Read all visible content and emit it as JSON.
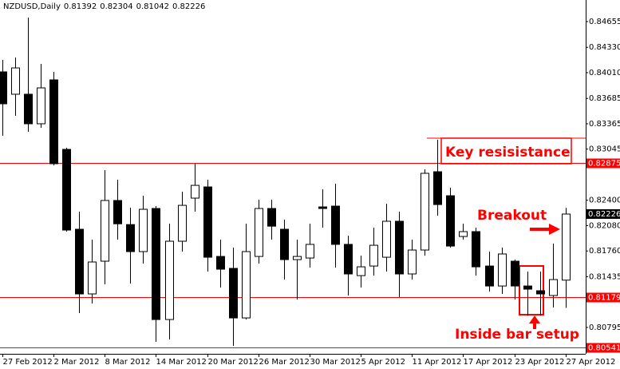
{
  "chart_data": {
    "type": "candlestick",
    "symbol": "NZDUSD,Daily",
    "categories": [
      "27 Feb 2012",
      null,
      null,
      null,
      "2 Mar 2012",
      null,
      null,
      null,
      "8 Mar 2012",
      null,
      null,
      null,
      "14 Mar 2012",
      null,
      null,
      null,
      "20 Mar 2012",
      null,
      null,
      null,
      "26 Mar 2012",
      null,
      null,
      null,
      "30 Mar 2012",
      null,
      null,
      null,
      "5 Apr 2012",
      null,
      null,
      null,
      "11 Apr 2012",
      null,
      null,
      null,
      "17 Apr 2012",
      null,
      null,
      null,
      "23 Apr 2012",
      null,
      null,
      null,
      "27 Apr 2012"
    ],
    "open": [
      0.8402,
      0.83738,
      0.83738,
      0.83365,
      0.83919,
      0.83042,
      0.82034,
      0.81218,
      0.81631,
      0.82397,
      0.82093,
      0.81752,
      0.82296,
      0.80895,
      0.81883,
      0.82427,
      0.82568,
      0.81691,
      0.8154,
      0.80915,
      0.81691,
      0.82296,
      0.82034,
      0.81651,
      0.81671,
      0.82316,
      0.82326,
      0.81843,
      0.81449,
      0.8157,
      0.81681,
      0.82135,
      0.8147,
      0.81772,
      0.8276,
      0.82457,
      0.81943,
      0.82004,
      0.8157,
      0.81318,
      0.81631,
      0.81318,
      0.81258,
      0.81198,
      0.81392
    ],
    "high": [
      0.84171,
      0.84201,
      0.84705,
      0.84121,
      0.8402,
      0.83062,
      0.82256,
      0.81903,
      0.8278,
      0.82659,
      0.82306,
      0.82457,
      0.82326,
      0.82103,
      0.82508,
      0.82861,
      0.82659,
      0.81903,
      0.81802,
      0.82103,
      0.82407,
      0.82407,
      0.82155,
      0.81903,
      0.82103,
      0.82538,
      0.82609,
      0.81953,
      0.81701,
      0.82054,
      0.82356,
      0.82256,
      0.81903,
      0.8279,
      0.83163,
      0.82558,
      0.82103,
      0.82054,
      0.81752,
      0.81802,
      0.81651,
      0.815,
      0.815,
      0.81853,
      0.82304
    ],
    "low": [
      0.83213,
      0.83465,
      0.83264,
      0.83314,
      0.8284,
      0.82004,
      0.80976,
      0.81097,
      0.81339,
      0.81903,
      0.81349,
      0.81601,
      0.80613,
      0.80643,
      0.81752,
      0.82256,
      0.815,
      0.81298,
      0.80562,
      0.80895,
      0.81601,
      0.81903,
      0.81399,
      0.81147,
      0.8155,
      0.82054,
      0.8155,
      0.81198,
      0.81298,
      0.81449,
      0.815,
      0.81177,
      0.81399,
      0.81701,
      0.82205,
      0.81802,
      0.81903,
      0.81449,
      0.81248,
      0.81218,
      0.81147,
      0.80945,
      0.80945,
      0.81046,
      0.81042
    ],
    "close": [
      0.83617,
      0.8407,
      0.83365,
      0.83818,
      0.82861,
      0.82024,
      0.81218,
      0.81621,
      0.82397,
      0.82103,
      0.81752,
      0.82286,
      0.80895,
      0.81883,
      0.82336,
      0.82588,
      0.81681,
      0.8153,
      0.80915,
      0.81752,
      0.82296,
      0.82073,
      0.81651,
      0.81691,
      0.81843,
      0.82296,
      0.81843,
      0.8147,
      0.8156,
      0.81832,
      0.82135,
      0.8147,
      0.81772,
      0.8274,
      0.82346,
      0.81822,
      0.82004,
      0.8156,
      0.81318,
      0.81722,
      0.81318,
      0.81278,
      0.81218,
      0.81399,
      0.82226
    ],
    "ylim": [
      0.80462,
      0.84927
    ],
    "yticks": [
      0.84655,
      {
        "value": 0.8433,
        "label": "0.84330"
      },
      {
        "value": 0.8401,
        "label": "0.84010"
      },
      0.83685,
      0.83365,
      0.83045,
      {
        "value": 0.824,
        "label": "0.82400"
      },
      {
        "value": 0.8208,
        "label": "0.82080"
      },
      {
        "value": 0.8176,
        "label": "0.81760"
      },
      0.81435,
      0.80795
    ],
    "levels": [
      0.82875,
      0.81179,
      0.80541
    ],
    "level_color": "#ff0000",
    "annotations": [
      "Key resisistance",
      "Breakout",
      "Inside bar setup"
    ]
  }
}
